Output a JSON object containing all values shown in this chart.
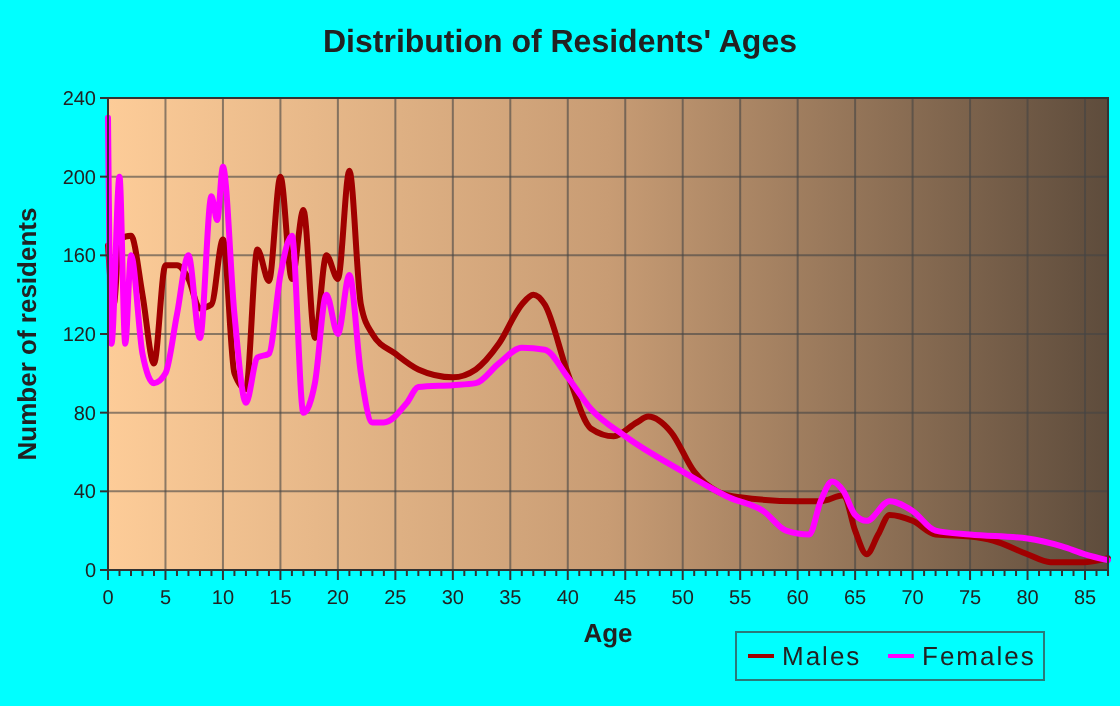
{
  "chart_data": {
    "type": "line",
    "title": "Distribution of Residents' Ages",
    "xlabel": "Age",
    "ylabel": "Number of residents",
    "xlim": [
      0,
      87
    ],
    "xticks": [
      0,
      5,
      10,
      15,
      20,
      25,
      30,
      35,
      40,
      45,
      50,
      55,
      60,
      65,
      70,
      75,
      80,
      85
    ],
    "ylim": [
      0,
      240
    ],
    "yticks": [
      0,
      40,
      80,
      120,
      160,
      200,
      240
    ],
    "grid": true,
    "legend": "bottom",
    "marker": "none",
    "line_style": "solid",
    "series": [
      {
        "name": "Males",
        "color": "#a00000",
        "x": [
          0,
          0.5,
          1,
          2,
          3,
          4,
          5,
          6,
          7,
          8,
          9,
          10,
          11,
          12,
          13,
          14,
          15,
          16,
          17,
          18,
          19,
          20,
          21,
          22,
          23,
          25,
          27,
          30,
          32,
          34,
          36,
          37,
          38,
          40,
          42,
          44,
          46,
          47,
          49,
          51,
          53,
          55,
          60,
          62,
          64,
          65,
          66,
          67,
          68,
          70,
          72,
          75,
          77,
          80,
          82,
          85,
          87
        ],
        "values": [
          165,
          135,
          168,
          170,
          140,
          105,
          155,
          155,
          148,
          133,
          135,
          168,
          100,
          92,
          163,
          147,
          200,
          148,
          183,
          118,
          160,
          148,
          203,
          135,
          120,
          110,
          102,
          98,
          102,
          115,
          135,
          140,
          135,
          100,
          72,
          68,
          75,
          78,
          70,
          50,
          40,
          37,
          35,
          35,
          38,
          20,
          8,
          18,
          28,
          25,
          18,
          17,
          15,
          8,
          4,
          4,
          6
        ]
      },
      {
        "name": "Females",
        "color": "#ff00ff",
        "x": [
          0,
          0.3,
          1,
          1.5,
          2,
          3,
          4,
          5,
          6,
          7,
          8,
          9,
          9.5,
          10,
          11,
          12,
          13,
          14,
          15,
          16,
          17,
          18,
          19,
          20,
          21,
          22,
          23,
          24,
          26,
          27,
          30,
          32,
          34,
          36,
          38,
          40,
          42,
          45,
          50,
          54,
          57,
          59,
          61,
          62,
          63,
          64,
          65,
          66,
          68,
          70,
          72,
          75,
          80,
          83,
          85,
          87
        ],
        "values": [
          230,
          115,
          200,
          115,
          160,
          110,
          95,
          100,
          130,
          160,
          118,
          190,
          178,
          205,
          130,
          85,
          108,
          110,
          150,
          170,
          80,
          95,
          140,
          120,
          150,
          100,
          75,
          75,
          85,
          93,
          94,
          95,
          105,
          113,
          112,
          98,
          82,
          68,
          50,
          37,
          30,
          20,
          18,
          35,
          45,
          40,
          28,
          25,
          35,
          30,
          20,
          18,
          16,
          12,
          8,
          5
        ]
      }
    ]
  }
}
